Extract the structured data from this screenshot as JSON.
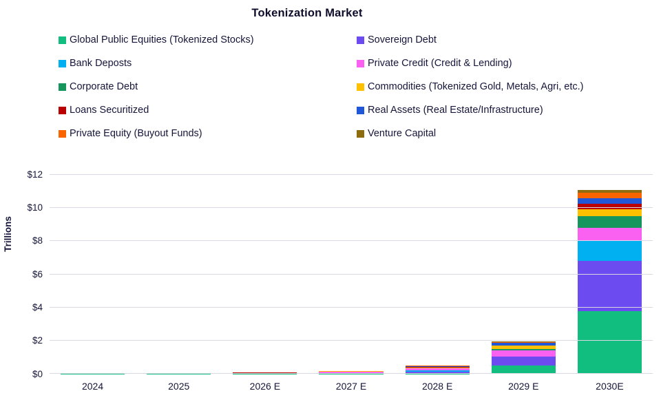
{
  "title": "Tokenization Market",
  "y_axis_label": "Trillions",
  "text_color": "#15153a",
  "grid_color": "#d9d9e4",
  "chart_data": {
    "type": "bar",
    "subtype": "stacked-vertical",
    "title": "Tokenization Market",
    "xlabel": "",
    "ylabel": "Trillions",
    "ylim": [
      0,
      12
    ],
    "grid": "horizontal",
    "legend_position": "top-two-columns",
    "yticks": [
      {
        "value": 0,
        "label": "$0"
      },
      {
        "value": 2,
        "label": "$2"
      },
      {
        "value": 4,
        "label": "$4"
      },
      {
        "value": 6,
        "label": "$6"
      },
      {
        "value": 8,
        "label": "$8"
      },
      {
        "value": 10,
        "label": "$10"
      },
      {
        "value": 12,
        "label": "$12"
      }
    ],
    "categories": [
      "2024",
      "2025",
      "2026 E",
      "2027 E",
      "2028 E",
      "2029 E",
      "2030E"
    ],
    "units": "USD trillions",
    "series": [
      {
        "name": "Global Public Equities (Tokenized Stocks)",
        "color": "#12be7f",
        "values": [
          0.005,
          0.008,
          0.01,
          0.012,
          0.04,
          0.5,
          3.8
        ]
      },
      {
        "name": "Sovereign Debt",
        "color": "#6c4cf1",
        "values": [
          0.004,
          0.006,
          0.01,
          0.04,
          0.12,
          0.55,
          3.0
        ]
      },
      {
        "name": "Bank Deposts",
        "color": "#00b0f0",
        "values": [
          0.002,
          0.004,
          0.006,
          0.01,
          0.06,
          0.02,
          1.2
        ]
      },
      {
        "name": "Private Credit (Credit & Lending)",
        "color": "#fb61f1",
        "values": [
          0.01,
          0.015,
          0.02,
          0.08,
          0.12,
          0.35,
          0.8
        ]
      },
      {
        "name": "Corporate Debt",
        "color": "#16965d",
        "values": [
          0.002,
          0.003,
          0.005,
          0.01,
          0.02,
          0.08,
          0.7
        ]
      },
      {
        "name": "Commodities (Tokenized Gold, Metals, Agri, etc.)",
        "color": "#ffc000",
        "values": [
          0.02,
          0.025,
          0.03,
          0.02,
          0.05,
          0.2,
          0.4
        ]
      },
      {
        "name": "Loans Securitized",
        "color": "#b80100",
        "values": [
          0.005,
          0.01,
          0.02,
          0.01,
          0.02,
          0.02,
          0.35
        ]
      },
      {
        "name": "Real Assets (Real Estate/Infrastructure)",
        "color": "#1f57d8",
        "values": [
          0.002,
          0.004,
          0.008,
          0.01,
          0.04,
          0.15,
          0.35
        ]
      },
      {
        "name": "Private Equity (Buyout Funds)",
        "color": "#fa6400",
        "values": [
          0.002,
          0.003,
          0.005,
          0.005,
          0.04,
          0.05,
          0.3
        ]
      },
      {
        "name": "Venture Capital",
        "color": "#8f6b10",
        "values": [
          0.001,
          0.002,
          0.003,
          0.005,
          0.02,
          0.05,
          0.2
        ]
      }
    ]
  }
}
